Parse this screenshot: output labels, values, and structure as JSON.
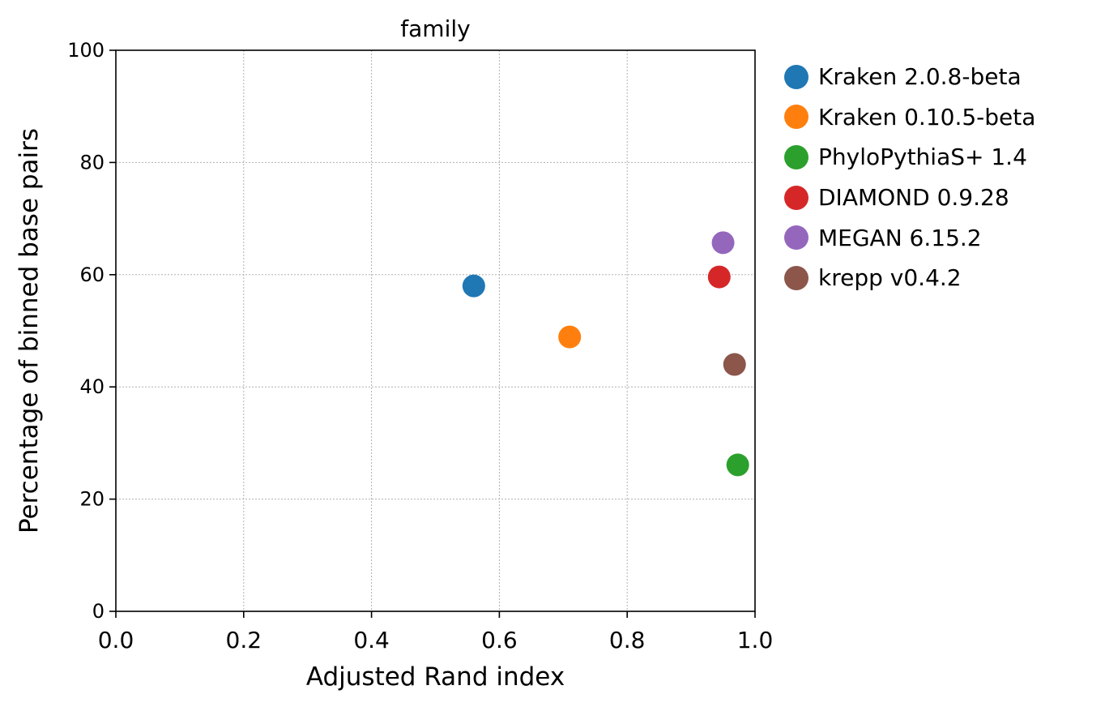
{
  "chart_data": {
    "type": "scatter",
    "title": "family",
    "xlabel": "Adjusted Rand index",
    "ylabel": "Percentage of binned base pairs",
    "xlim": [
      0.0,
      1.0
    ],
    "ylim": [
      0,
      100
    ],
    "xticks": [
      "0.0",
      "0.2",
      "0.4",
      "0.6",
      "0.8",
      "1.0"
    ],
    "yticks": [
      "0",
      "20",
      "40",
      "60",
      "80",
      "100"
    ],
    "grid": true,
    "legend_position": "outside-right",
    "series": [
      {
        "name": "Kraken 2.0.8-beta",
        "color": "#1f77b4",
        "x": 0.56,
        "y": 58.0
      },
      {
        "name": "Kraken 0.10.5-beta",
        "color": "#ff7f0e",
        "x": 0.71,
        "y": 48.9
      },
      {
        "name": "PhyloPythiaS+ 1.4",
        "color": "#2ca02c",
        "x": 0.973,
        "y": 26.1
      },
      {
        "name": "DIAMOND 0.9.28",
        "color": "#d62728",
        "x": 0.944,
        "y": 59.6
      },
      {
        "name": "MEGAN 6.15.2",
        "color": "#9467bd",
        "x": 0.95,
        "y": 65.7
      },
      {
        "name": "krepp v0.4.2",
        "color": "#8c564b",
        "x": 0.968,
        "y": 44.0
      }
    ]
  }
}
